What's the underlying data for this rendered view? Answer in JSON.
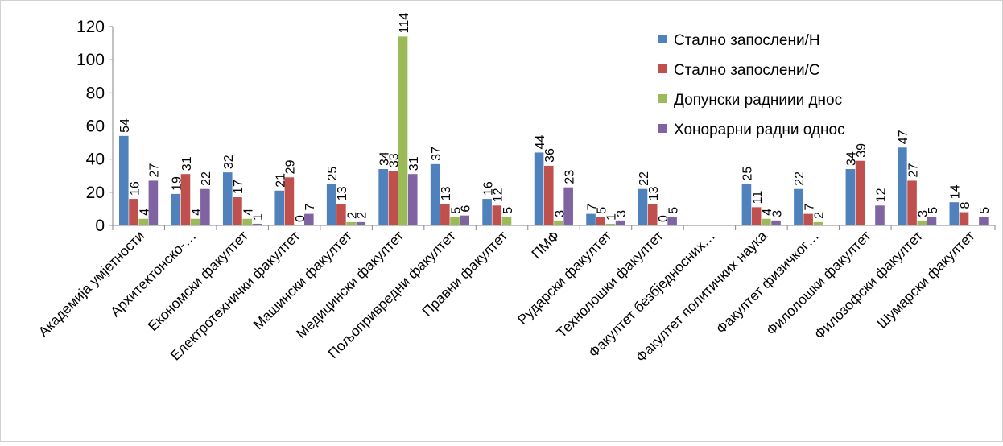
{
  "chart_data": {
    "type": "bar",
    "title": "",
    "xlabel": "",
    "ylabel": "",
    "ylim": [
      0,
      120
    ],
    "yticks": [
      0,
      20,
      40,
      60,
      80,
      100,
      120
    ],
    "grid": false,
    "legend_position": "top-right",
    "categories": [
      "Академија умјетности",
      "Архитектонско-…",
      "Економски факултет",
      "Електротехнички факултет",
      "Машински факултет",
      "Медицински факултет",
      "Пољопривредни факултет",
      "Правни факултет",
      "ПМФ",
      "Рударски факултет",
      "Технолошки факултет",
      "Факултет безбједносних…",
      "Факултет политичких наука",
      "Факултет физичког…",
      "Филолошки факултет",
      "Филозофски факултет",
      "Шумарски факултет"
    ],
    "series": [
      {
        "name": "Стално запослени/Н",
        "color": "#4F81BD",
        "values": [
          54,
          19,
          32,
          21,
          25,
          34,
          37,
          16,
          44,
          7,
          22,
          0,
          25,
          22,
          34,
          47,
          14
        ],
        "labels": [
          "54",
          "19",
          "32",
          "21",
          "25",
          "34",
          "37",
          "16",
          "44",
          "7",
          "22",
          "",
          "25",
          "22",
          "34",
          "47",
          "14"
        ]
      },
      {
        "name": "Стално запослени/С",
        "color": "#C0504D",
        "values": [
          16,
          31,
          17,
          29,
          13,
          33,
          13,
          12,
          36,
          5,
          13,
          0,
          11,
          7,
          39,
          27,
          8
        ],
        "labels": [
          "16",
          "31",
          "17",
          "29",
          "13",
          "33",
          "13",
          "12",
          "36",
          "5",
          "13",
          "",
          "11",
          "7",
          "39",
          "27",
          "8"
        ]
      },
      {
        "name": "Допунски радниии днос",
        "color": "#9BBB59",
        "values": [
          4,
          4,
          4,
          0,
          2,
          114,
          5,
          5,
          3,
          1,
          0,
          0,
          4,
          2,
          0,
          3,
          0
        ],
        "labels": [
          "4",
          "4",
          "4",
          "0",
          "2",
          "114",
          "5",
          "5",
          "3",
          "1",
          "0",
          "",
          "4",
          "2",
          "",
          "3",
          ""
        ]
      },
      {
        "name": "Хонорарни радни однос",
        "color": "#8064A2",
        "values": [
          27,
          22,
          1,
          7,
          2,
          31,
          6,
          0,
          23,
          3,
          5,
          0,
          3,
          0,
          12,
          5,
          5
        ],
        "labels": [
          "27",
          "22",
          "1",
          "7",
          "2",
          "31",
          "6",
          "",
          "23",
          "3",
          "5",
          "",
          "3",
          "",
          "12",
          "5",
          "5"
        ]
      }
    ]
  }
}
